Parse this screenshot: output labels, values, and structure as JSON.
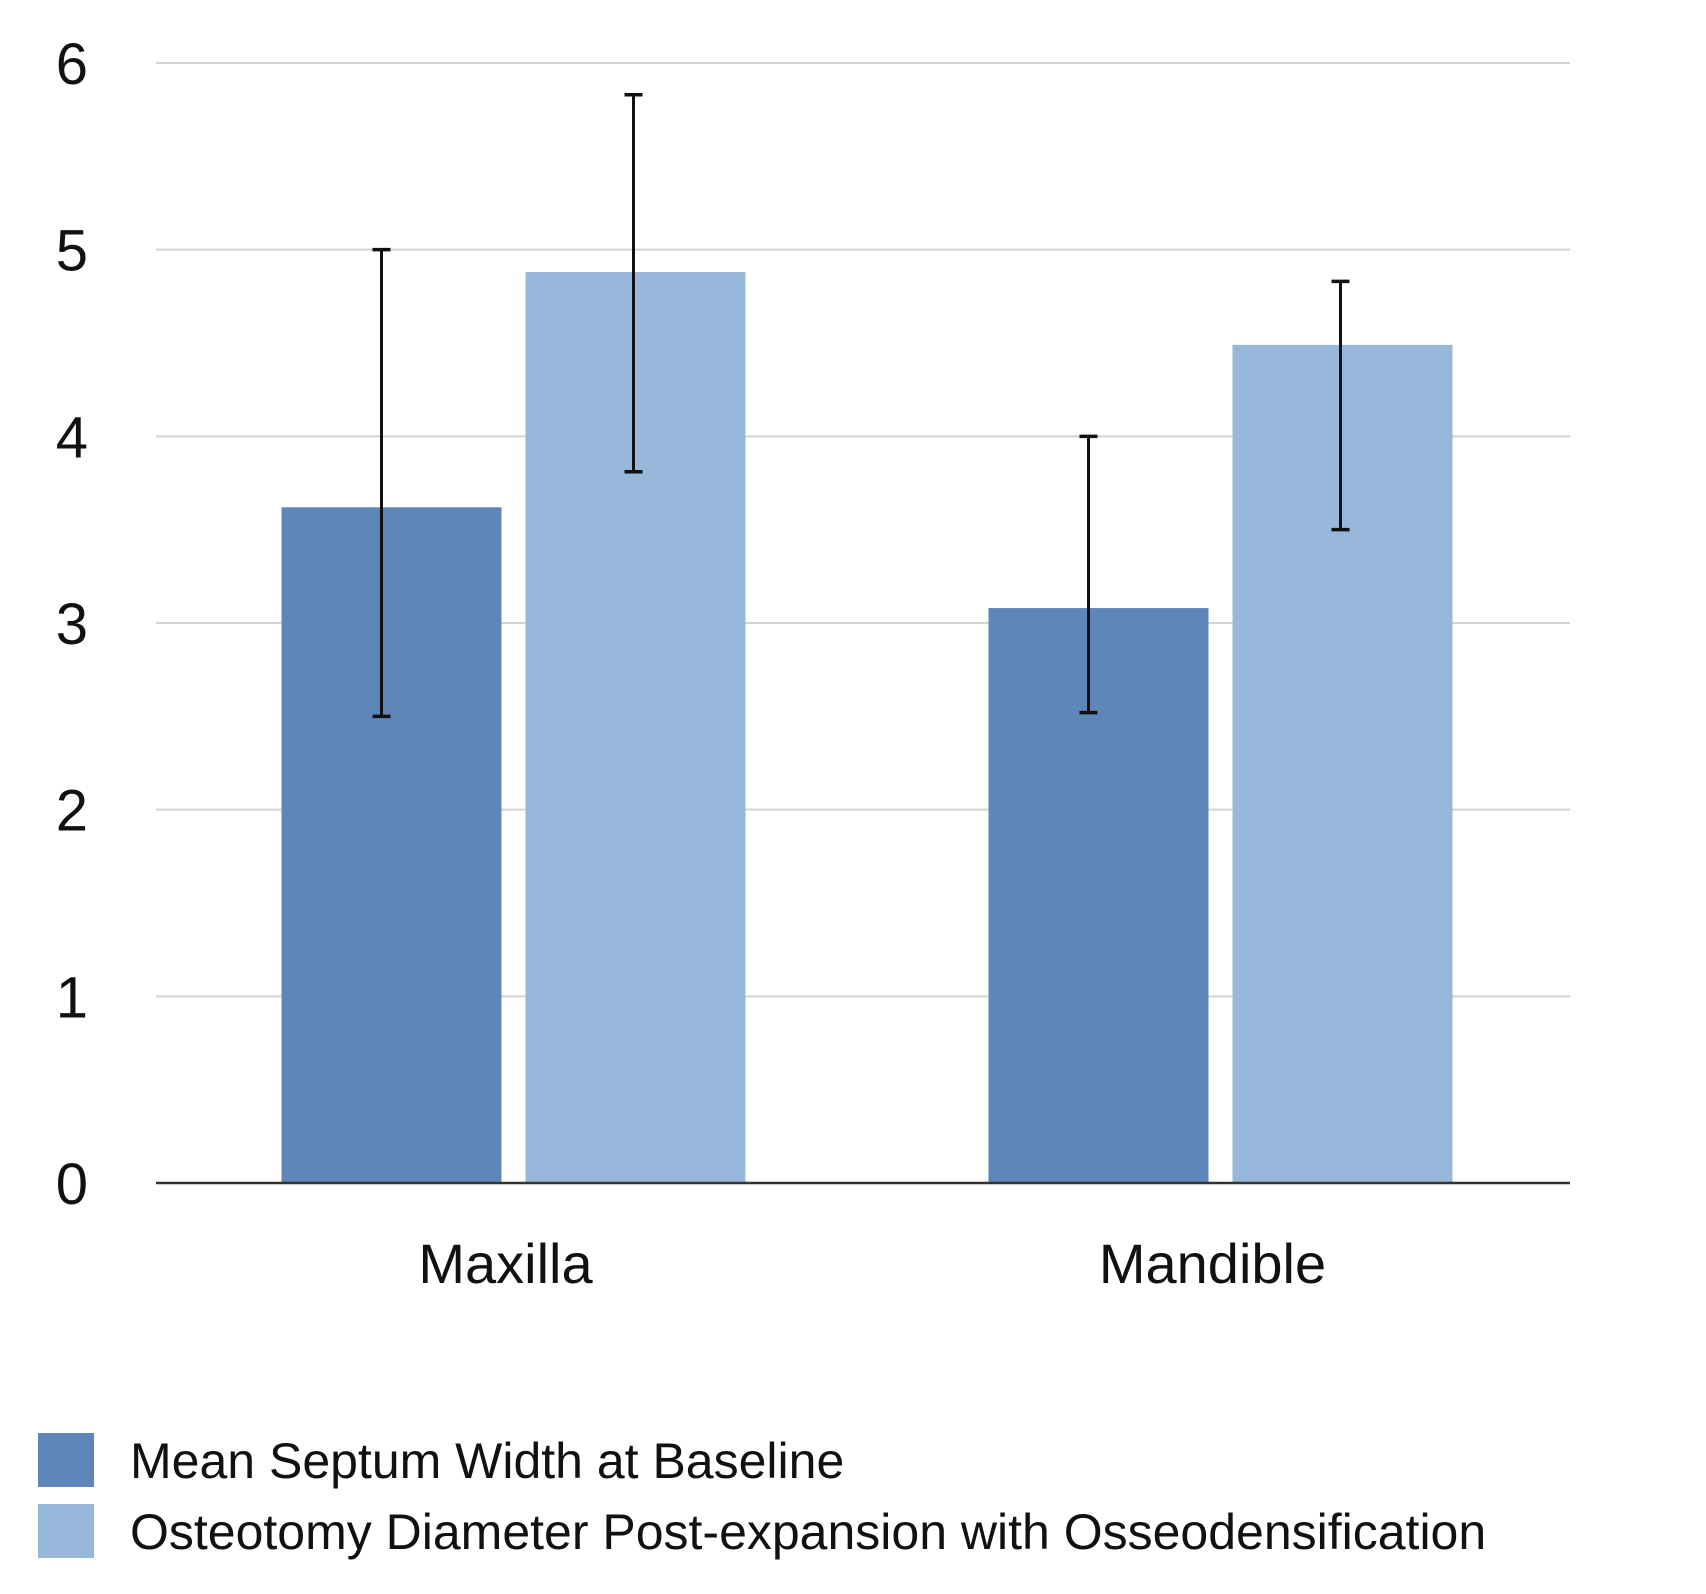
{
  "chart_data": {
    "type": "bar",
    "title": "",
    "xlabel": "",
    "ylabel": "",
    "categories": [
      "Maxilla",
      "Mandible"
    ],
    "series": [
      {
        "name": "Mean Septum Width at Baseline",
        "color": "#5e86b8",
        "values": [
          3.62,
          3.08
        ],
        "error_low": [
          2.5,
          2.52
        ],
        "error_high": [
          5.0,
          4.0
        ]
      },
      {
        "name": "Osteotomy Diameter Post-expansion with Osseodensification",
        "color": "#97b8da",
        "values": [
          4.88,
          4.49
        ],
        "error_low": [
          3.81,
          3.5
        ],
        "error_high": [
          5.83,
          4.83
        ]
      }
    ],
    "ylim": [
      0,
      6
    ],
    "yticks": [
      "0",
      "1",
      "2",
      "3",
      "4",
      "5",
      "6"
    ],
    "grid": true,
    "gridline_color": "#d3d3d3",
    "axis_color": "#333333",
    "errorbar_color": "#111111",
    "legend_position": "bottom-left"
  }
}
